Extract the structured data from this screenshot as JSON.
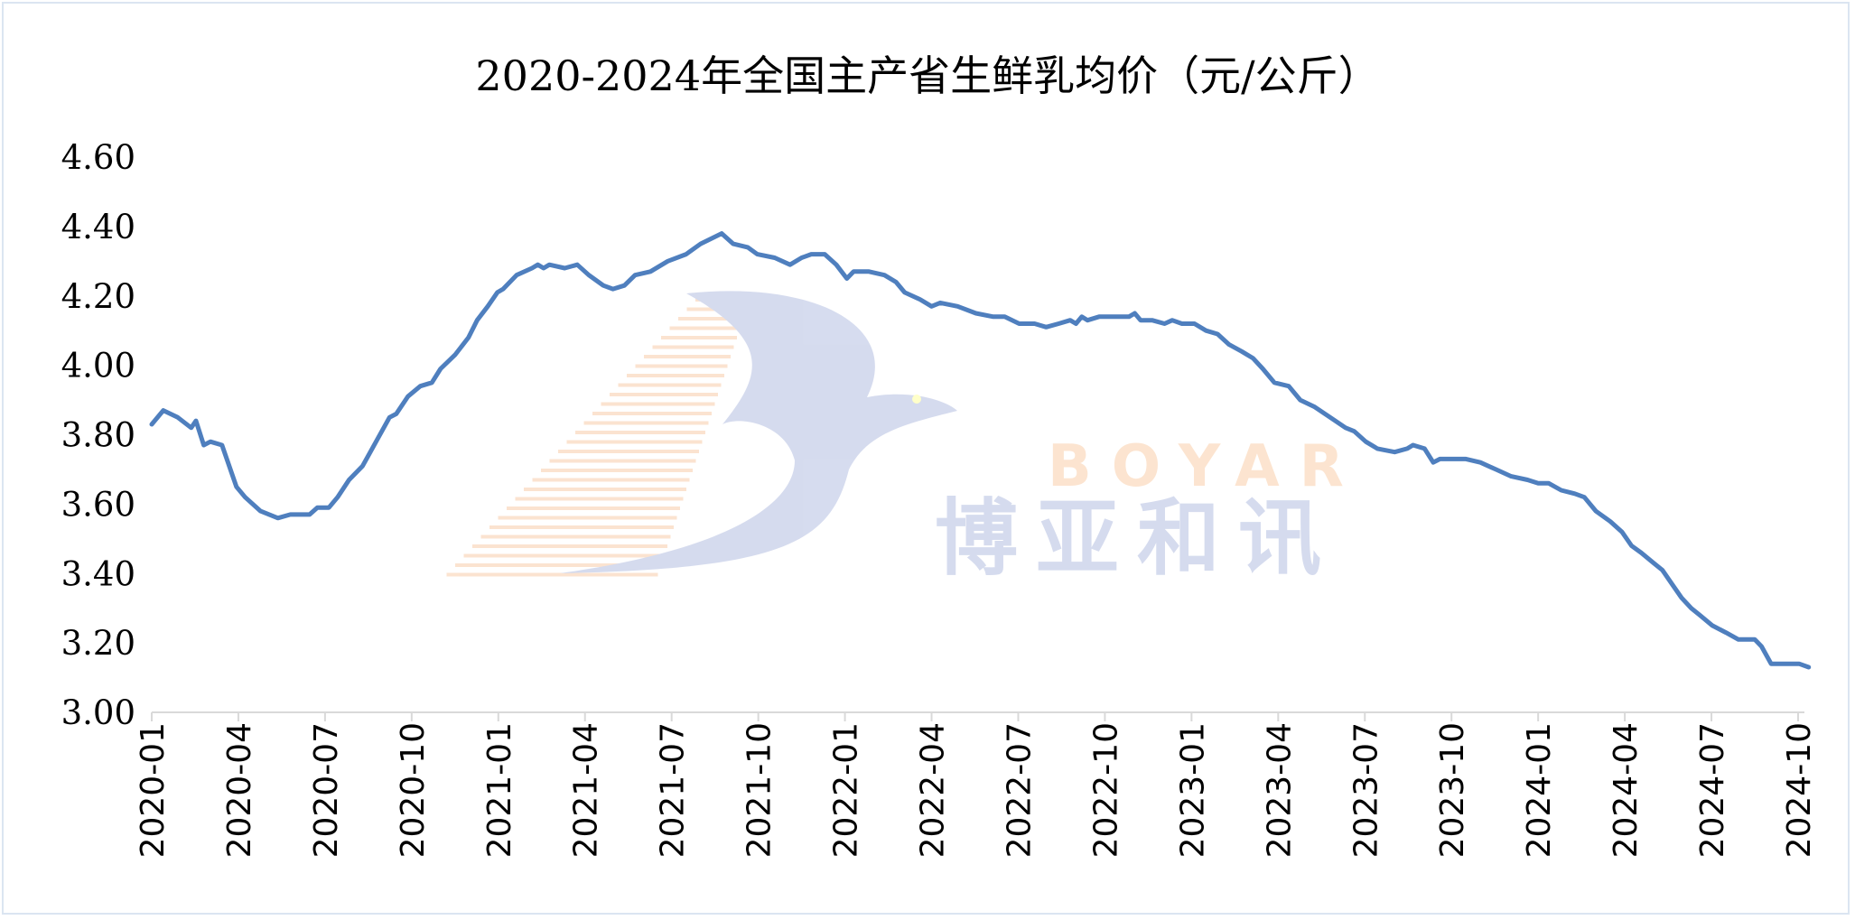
{
  "chart_data": {
    "type": "line",
    "title": "2020-2024年全国主产省生鲜乳均价（元/公斤）",
    "xlabel": "",
    "ylabel": "",
    "ylim": [
      3.0,
      4.6
    ],
    "yticks": [
      "3.00",
      "3.20",
      "3.40",
      "3.60",
      "3.80",
      "4.00",
      "4.20",
      "4.40",
      "4.60"
    ],
    "xticks": [
      "2020-01",
      "2020-04",
      "2020-07",
      "2020-10",
      "2021-01",
      "2021-04",
      "2021-07",
      "2021-10",
      "2022-01",
      "2022-04",
      "2022-07",
      "2022-10",
      "2023-01",
      "2023-04",
      "2023-07",
      "2023-10",
      "2024-01",
      "2024-04",
      "2024-07",
      "2024-10"
    ],
    "grid": false,
    "legend": "none",
    "line_color": "#4f7fbe",
    "series": [
      {
        "points": [
          [
            "2020-01-01",
            3.83
          ],
          [
            "2020-01-13",
            3.87
          ],
          [
            "2020-01-28",
            3.85
          ],
          [
            "2020-02-12",
            3.82
          ],
          [
            "2020-02-17",
            3.84
          ],
          [
            "2020-02-25",
            3.77
          ],
          [
            "2020-03-02",
            3.78
          ],
          [
            "2020-03-14",
            3.77
          ],
          [
            "2020-03-29",
            3.65
          ],
          [
            "2020-04-08",
            3.62
          ],
          [
            "2020-04-24",
            3.58
          ],
          [
            "2020-05-12",
            3.56
          ],
          [
            "2020-05-25",
            3.57
          ],
          [
            "2020-06-15",
            3.57
          ],
          [
            "2020-06-23",
            3.59
          ],
          [
            "2020-07-05",
            3.59
          ],
          [
            "2020-07-14",
            3.62
          ],
          [
            "2020-07-26",
            3.67
          ],
          [
            "2020-08-10",
            3.71
          ],
          [
            "2020-08-24",
            3.78
          ],
          [
            "2020-09-08",
            3.85
          ],
          [
            "2020-09-15",
            3.86
          ],
          [
            "2020-09-27",
            3.91
          ],
          [
            "2020-10-10",
            3.94
          ],
          [
            "2020-10-22",
            3.95
          ],
          [
            "2020-10-31",
            3.99
          ],
          [
            "2020-11-16",
            4.03
          ],
          [
            "2020-11-30",
            4.08
          ],
          [
            "2020-12-09",
            4.13
          ],
          [
            "2020-12-20",
            4.17
          ],
          [
            "2020-12-30",
            4.21
          ],
          [
            "2021-01-06",
            4.22
          ],
          [
            "2021-01-20",
            4.26
          ],
          [
            "2021-02-06",
            4.28
          ],
          [
            "2021-02-12",
            4.29
          ],
          [
            "2021-02-18",
            4.28
          ],
          [
            "2021-02-24",
            4.29
          ],
          [
            "2021-03-10",
            4.28
          ],
          [
            "2021-03-23",
            4.29
          ],
          [
            "2021-04-05",
            4.26
          ],
          [
            "2021-04-20",
            4.23
          ],
          [
            "2021-04-30",
            4.22
          ],
          [
            "2021-05-12",
            4.23
          ],
          [
            "2021-05-23",
            4.26
          ],
          [
            "2021-06-09",
            4.27
          ],
          [
            "2021-06-27",
            4.3
          ],
          [
            "2021-07-16",
            4.32
          ],
          [
            "2021-08-01",
            4.35
          ],
          [
            "2021-08-23",
            4.38
          ],
          [
            "2021-09-05",
            4.35
          ],
          [
            "2021-09-20",
            4.34
          ],
          [
            "2021-09-30",
            4.32
          ],
          [
            "2021-10-18",
            4.31
          ],
          [
            "2021-11-04",
            4.29
          ],
          [
            "2021-11-16",
            4.31
          ],
          [
            "2021-11-26",
            4.32
          ],
          [
            "2021-12-10",
            4.32
          ],
          [
            "2021-12-22",
            4.29
          ],
          [
            "2022-01-03",
            4.25
          ],
          [
            "2022-01-10",
            4.27
          ],
          [
            "2022-01-26",
            4.27
          ],
          [
            "2022-02-12",
            4.26
          ],
          [
            "2022-02-24",
            4.24
          ],
          [
            "2022-03-03",
            4.21
          ],
          [
            "2022-03-19",
            4.19
          ],
          [
            "2022-04-01",
            4.17
          ],
          [
            "2022-04-10",
            4.18
          ],
          [
            "2022-04-28",
            4.17
          ],
          [
            "2022-05-17",
            4.15
          ],
          [
            "2022-06-05",
            4.14
          ],
          [
            "2022-06-17",
            4.14
          ],
          [
            "2022-07-02",
            4.12
          ],
          [
            "2022-07-18",
            4.12
          ],
          [
            "2022-07-30",
            4.11
          ],
          [
            "2022-08-13",
            4.12
          ],
          [
            "2022-08-25",
            4.13
          ],
          [
            "2022-09-01",
            4.12
          ],
          [
            "2022-09-07",
            4.14
          ],
          [
            "2022-09-13",
            4.13
          ],
          [
            "2022-09-25",
            4.14
          ],
          [
            "2022-10-26",
            4.14
          ],
          [
            "2022-11-02",
            4.15
          ],
          [
            "2022-11-08",
            4.13
          ],
          [
            "2022-11-20",
            4.13
          ],
          [
            "2022-12-03",
            4.12
          ],
          [
            "2022-12-11",
            4.13
          ],
          [
            "2022-12-21",
            4.12
          ],
          [
            "2023-01-04",
            4.12
          ],
          [
            "2023-01-16",
            4.1
          ],
          [
            "2023-01-28",
            4.09
          ],
          [
            "2023-02-10",
            4.06
          ],
          [
            "2023-02-23",
            4.04
          ],
          [
            "2023-03-05",
            4.02
          ],
          [
            "2023-03-15",
            3.99
          ],
          [
            "2023-03-27",
            3.95
          ],
          [
            "2023-04-12",
            3.94
          ],
          [
            "2023-04-24",
            3.9
          ],
          [
            "2023-05-09",
            3.88
          ],
          [
            "2023-05-25",
            3.85
          ],
          [
            "2023-06-11",
            3.82
          ],
          [
            "2023-06-20",
            3.81
          ],
          [
            "2023-07-02",
            3.78
          ],
          [
            "2023-07-14",
            3.76
          ],
          [
            "2023-08-02",
            3.75
          ],
          [
            "2023-08-15",
            3.76
          ],
          [
            "2023-08-21",
            3.77
          ],
          [
            "2023-09-03",
            3.76
          ],
          [
            "2023-09-12",
            3.72
          ],
          [
            "2023-09-19",
            3.73
          ],
          [
            "2023-10-16",
            3.73
          ],
          [
            "2023-11-01",
            3.72
          ],
          [
            "2023-11-17",
            3.7
          ],
          [
            "2023-12-03",
            3.68
          ],
          [
            "2023-12-20",
            3.67
          ],
          [
            "2024-01-01",
            3.66
          ],
          [
            "2024-01-12",
            3.66
          ],
          [
            "2024-01-25",
            3.64
          ],
          [
            "2024-02-09",
            3.63
          ],
          [
            "2024-02-19",
            3.62
          ],
          [
            "2024-03-01",
            3.58
          ],
          [
            "2024-03-16",
            3.55
          ],
          [
            "2024-03-28",
            3.52
          ],
          [
            "2024-04-08",
            3.48
          ],
          [
            "2024-04-18",
            3.46
          ],
          [
            "2024-05-01",
            3.43
          ],
          [
            "2024-05-10",
            3.41
          ],
          [
            "2024-05-20",
            3.37
          ],
          [
            "2024-05-30",
            3.33
          ],
          [
            "2024-06-10",
            3.3
          ],
          [
            "2024-06-19",
            3.28
          ],
          [
            "2024-07-02",
            3.25
          ],
          [
            "2024-07-16",
            3.23
          ],
          [
            "2024-07-29",
            3.21
          ],
          [
            "2024-08-16",
            3.21
          ],
          [
            "2024-08-23",
            3.19
          ],
          [
            "2024-09-03",
            3.14
          ],
          [
            "2024-10-02",
            3.14
          ],
          [
            "2024-10-12",
            3.13
          ]
        ]
      }
    ]
  },
  "watermark": {
    "latin": "BOYAR",
    "chinese": "博亚和讯"
  }
}
